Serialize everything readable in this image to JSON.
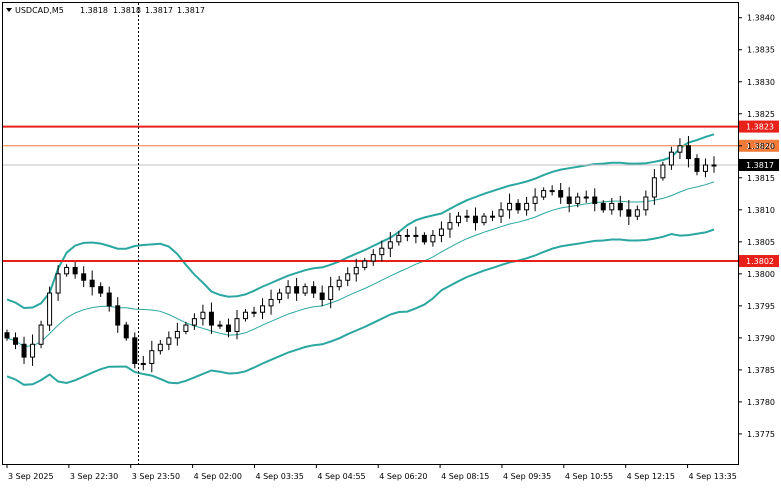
{
  "chart_data": {
    "type": "candlestick",
    "title": "USDCAD,M5",
    "ohlc_header": [
      "1.3818",
      "1.3818",
      "1.3817",
      "1.3817"
    ],
    "price_range": [
      1.37703,
      1.38423
    ],
    "y_ticks": [
      "1.3840",
      "1.3835",
      "1.3830",
      "1.3825",
      "1.3820",
      "1.3815",
      "1.3810",
      "1.3805",
      "1.3800",
      "1.3795",
      "1.3790",
      "1.3785",
      "1.3780",
      "1.3775"
    ],
    "x_ticks": [
      "3 Sep 2025",
      "3 Sep 22:30",
      "3 Sep 23:50",
      "4 Sep 02:00",
      "4 Sep 03:35",
      "4 Sep 04:55",
      "4 Sep 06:20",
      "4 Sep 08:15",
      "4 Sep 09:35",
      "4 Sep 10:55",
      "4 Sep 12:15",
      "4 Sep 13:35"
    ],
    "horizontal_lines": [
      {
        "price": 1.3823,
        "label": "1.3823",
        "color": "#e8201a"
      },
      {
        "price": 1.382,
        "label": "1.3820",
        "color": "#f07a3a"
      },
      {
        "price": 1.3802,
        "label": "1.3802",
        "color": "#e8201a"
      }
    ],
    "current_price": {
      "price": 1.3817,
      "label": "1.3817"
    },
    "colors": {
      "candles": "#000000",
      "bands": "#2aa7a0",
      "midline": "#2aa7a0",
      "grid": "#c0c0c0",
      "current_line": "#c0c0c0"
    },
    "close": [
      1.379,
      1.3789,
      1.3787,
      1.3789,
      1.3792,
      1.3797,
      1.38,
      1.3801,
      1.38,
      1.3799,
      1.3798,
      1.3797,
      1.3795,
      1.3792,
      1.379,
      1.3786,
      1.3786,
      1.3788,
      1.3789,
      1.379,
      1.3791,
      1.3792,
      1.3793,
      1.3794,
      1.3792,
      1.3792,
      1.3791,
      1.3793,
      1.3794,
      1.3794,
      1.3795,
      1.3796,
      1.3797,
      1.3798,
      1.3797,
      1.3798,
      1.3797,
      1.3796,
      1.3798,
      1.3799,
      1.38,
      1.3801,
      1.3802,
      1.3803,
      1.3804,
      1.3805,
      1.3806,
      1.3806,
      1.3806,
      1.3805,
      1.3806,
      1.3807,
      1.3808,
      1.3809,
      1.3809,
      1.3808,
      1.3809,
      1.3809,
      1.381,
      1.3811,
      1.381,
      1.3811,
      1.3812,
      1.3813,
      1.3813,
      1.3812,
      1.3811,
      1.3812,
      1.3812,
      1.3811,
      1.381,
      1.3811,
      1.381,
      1.3809,
      1.381,
      1.3812,
      1.3815,
      1.3817,
      1.3819,
      1.382,
      1.3818,
      1.3816,
      1.3817,
      1.3817
    ]
  }
}
